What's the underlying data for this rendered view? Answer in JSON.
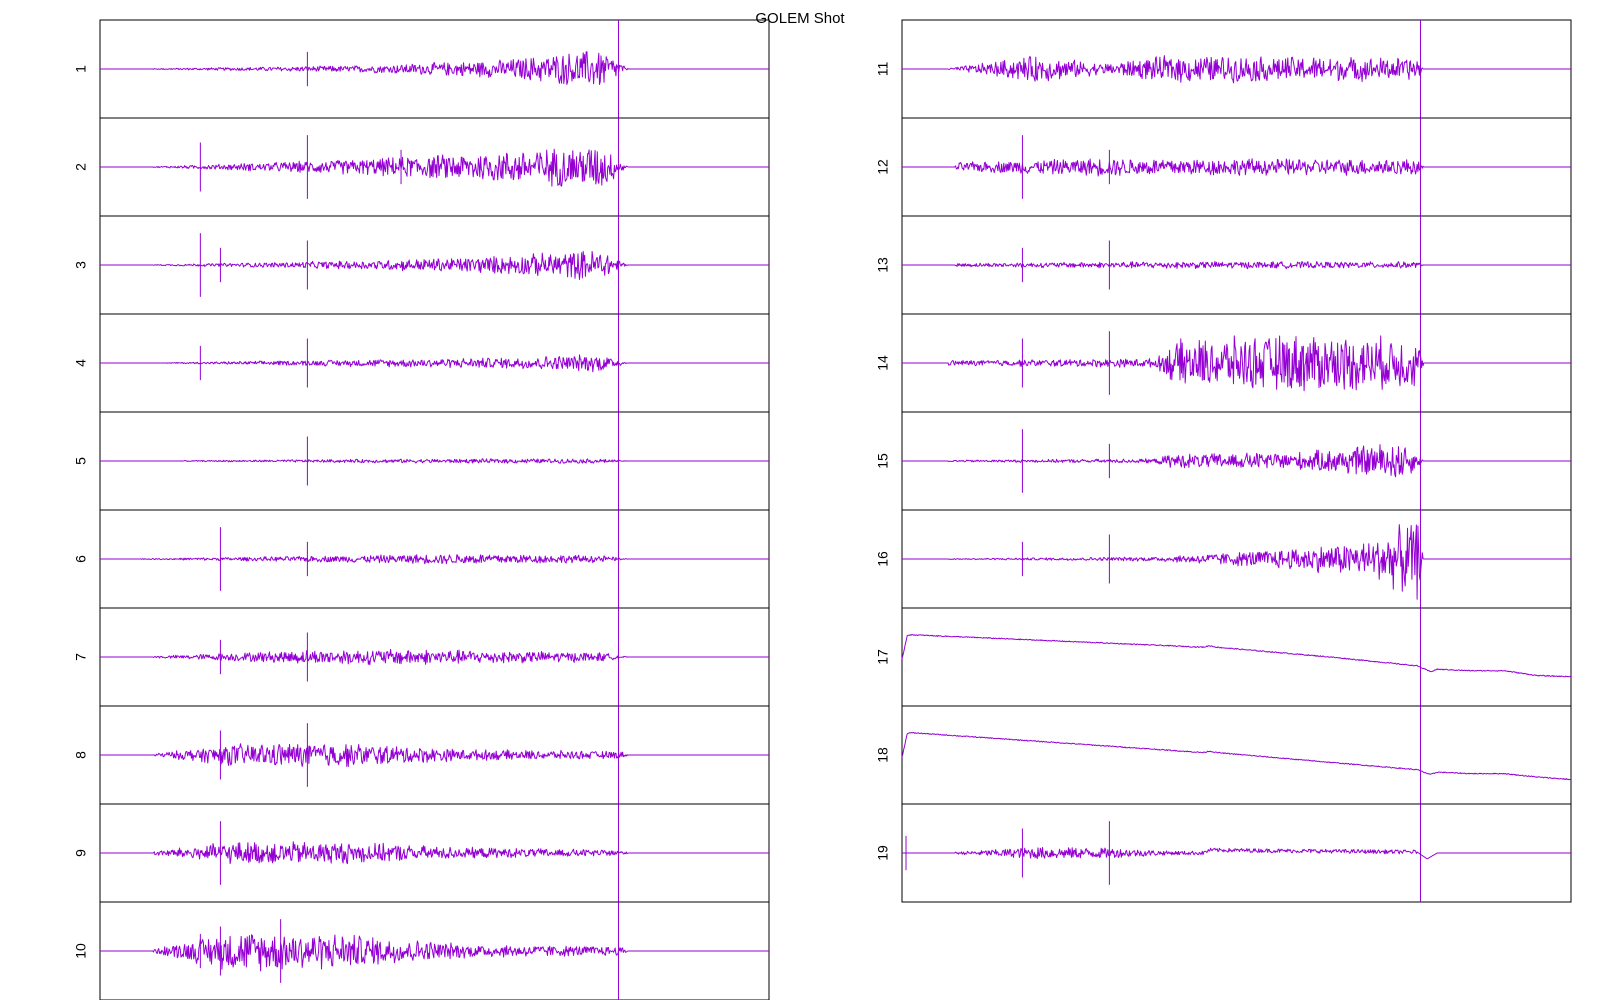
{
  "chart_data": {
    "type": "line",
    "title": "GOLEM Shot",
    "xlabel": "",
    "ylabel": "",
    "grid": false,
    "legend": "none",
    "trace_color": "#9400d3",
    "frame_color": "#000000",
    "columns": 2,
    "x_range": [
      0,
      1
    ],
    "marker_lines_x": [
      0.16,
      0.31,
      0.775
    ],
    "channels": [
      {
        "label": "1",
        "kind": "burst",
        "amplitude": 0.45,
        "envelope": [
          [
            0.08,
            0.01
          ],
          [
            0.4,
            0.08
          ],
          [
            0.6,
            0.2
          ],
          [
            0.75,
            0.45
          ],
          [
            0.79,
            0.0
          ]
        ],
        "spikes_x": [
          0.31,
          0.775
        ]
      },
      {
        "label": "2",
        "kind": "burst",
        "amplitude": 0.5,
        "envelope": [
          [
            0.08,
            0.01
          ],
          [
            0.4,
            0.18
          ],
          [
            0.6,
            0.35
          ],
          [
            0.75,
            0.5
          ],
          [
            0.79,
            0.0
          ]
        ],
        "spikes_x": [
          0.15,
          0.31,
          0.45,
          0.775
        ]
      },
      {
        "label": "3",
        "kind": "burst",
        "amplitude": 0.4,
        "envelope": [
          [
            0.08,
            0.01
          ],
          [
            0.4,
            0.1
          ],
          [
            0.6,
            0.2
          ],
          [
            0.75,
            0.35
          ],
          [
            0.79,
            0.0
          ]
        ],
        "spikes_x": [
          0.15,
          0.18,
          0.31,
          0.775
        ]
      },
      {
        "label": "4",
        "kind": "burst",
        "amplitude": 0.25,
        "envelope": [
          [
            0.1,
            0.01
          ],
          [
            0.4,
            0.08
          ],
          [
            0.6,
            0.12
          ],
          [
            0.75,
            0.2
          ],
          [
            0.79,
            0.0
          ]
        ],
        "spikes_x": [
          0.15,
          0.31,
          0.775
        ]
      },
      {
        "label": "5",
        "kind": "burst",
        "amplitude": 0.1,
        "envelope": [
          [
            0.12,
            0.01
          ],
          [
            0.4,
            0.04
          ],
          [
            0.6,
            0.05
          ],
          [
            0.75,
            0.05
          ],
          [
            0.79,
            0.0
          ]
        ],
        "spikes_x": [
          0.31,
          0.775
        ]
      },
      {
        "label": "6",
        "kind": "burst",
        "amplitude": 0.15,
        "envelope": [
          [
            0.06,
            0.01
          ],
          [
            0.3,
            0.06
          ],
          [
            0.55,
            0.12
          ],
          [
            0.75,
            0.08
          ],
          [
            0.79,
            0.0
          ]
        ],
        "spikes_x": [
          0.18,
          0.31,
          0.775
        ]
      },
      {
        "label": "7",
        "kind": "burst",
        "amplitude": 0.25,
        "envelope": [
          [
            0.08,
            0.02
          ],
          [
            0.3,
            0.15
          ],
          [
            0.45,
            0.18
          ],
          [
            0.75,
            0.1
          ],
          [
            0.79,
            0.0
          ]
        ],
        "spikes_x": [
          0.18,
          0.31,
          0.775
        ]
      },
      {
        "label": "8",
        "kind": "burst",
        "amplitude": 0.35,
        "envelope": [
          [
            0.08,
            0.03
          ],
          [
            0.2,
            0.25
          ],
          [
            0.35,
            0.28
          ],
          [
            0.55,
            0.12
          ],
          [
            0.78,
            0.08
          ],
          [
            0.79,
            0.0
          ]
        ],
        "spikes_x": [
          0.18,
          0.31,
          0.775
        ]
      },
      {
        "label": "9",
        "kind": "burst",
        "amplitude": 0.35,
        "envelope": [
          [
            0.08,
            0.05
          ],
          [
            0.2,
            0.25
          ],
          [
            0.35,
            0.25
          ],
          [
            0.55,
            0.12
          ],
          [
            0.78,
            0.07
          ],
          [
            0.79,
            0.0
          ]
        ],
        "spikes_x": [
          0.18,
          0.775
        ]
      },
      {
        "label": "10",
        "kind": "burst",
        "amplitude": 0.6,
        "envelope": [
          [
            0.08,
            0.05
          ],
          [
            0.2,
            0.45
          ],
          [
            0.35,
            0.4
          ],
          [
            0.55,
            0.15
          ],
          [
            0.78,
            0.1
          ],
          [
            0.79,
            0.0
          ]
        ],
        "spikes_x": [
          0.15,
          0.18,
          0.27,
          0.775
        ]
      },
      {
        "label": "11",
        "kind": "burst",
        "amplitude": 0.35,
        "envelope": [
          [
            0.07,
            0.02
          ],
          [
            0.2,
            0.3
          ],
          [
            0.3,
            0.12
          ],
          [
            0.4,
            0.3
          ],
          [
            0.77,
            0.25
          ],
          [
            0.78,
            0.0
          ]
        ],
        "spikes_x": [
          0.775
        ]
      },
      {
        "label": "12",
        "kind": "burst",
        "amplitude": 0.3,
        "envelope": [
          [
            0.08,
            0.1
          ],
          [
            0.3,
            0.2
          ],
          [
            0.6,
            0.18
          ],
          [
            0.77,
            0.18
          ],
          [
            0.78,
            0.0
          ]
        ],
        "spikes_x": [
          0.18,
          0.31,
          0.775
        ]
      },
      {
        "label": "13",
        "kind": "burst",
        "amplitude": 0.12,
        "envelope": [
          [
            0.08,
            0.04
          ],
          [
            0.4,
            0.08
          ],
          [
            0.77,
            0.07
          ],
          [
            0.78,
            0.0
          ]
        ],
        "spikes_x": [
          0.18,
          0.31,
          0.775
        ]
      },
      {
        "label": "14",
        "kind": "burst",
        "amplitude": 0.7,
        "envelope": [
          [
            0.07,
            0.06
          ],
          [
            0.38,
            0.1
          ],
          [
            0.41,
            0.5
          ],
          [
            0.6,
            0.65
          ],
          [
            0.77,
            0.55
          ],
          [
            0.78,
            0.0
          ]
        ],
        "spikes_x": [
          0.18,
          0.31,
          0.6,
          0.775
        ]
      },
      {
        "label": "15",
        "kind": "burst",
        "amplitude": 0.6,
        "envelope": [
          [
            0.07,
            0.02
          ],
          [
            0.38,
            0.05
          ],
          [
            0.4,
            0.15
          ],
          [
            0.6,
            0.2
          ],
          [
            0.75,
            0.45
          ],
          [
            0.78,
            0.0
          ]
        ],
        "spikes_x": [
          0.18,
          0.31,
          0.775
        ]
      },
      {
        "label": "16",
        "kind": "burst",
        "amplitude": 0.9,
        "envelope": [
          [
            0.07,
            0.01
          ],
          [
            0.38,
            0.05
          ],
          [
            0.55,
            0.2
          ],
          [
            0.7,
            0.4
          ],
          [
            0.77,
            0.9
          ],
          [
            0.78,
            0.0
          ]
        ],
        "spikes_x": [
          0.18,
          0.31,
          0.775
        ]
      },
      {
        "label": "17",
        "kind": "ramp",
        "points": [
          [
            0.0,
            -0.05
          ],
          [
            0.008,
            0.45
          ],
          [
            0.02,
            0.45
          ],
          [
            0.45,
            0.2
          ],
          [
            0.46,
            0.23
          ],
          [
            0.47,
            0.2
          ],
          [
            0.64,
            0.0
          ],
          [
            0.77,
            -0.18
          ],
          [
            0.79,
            -0.3
          ],
          [
            0.8,
            -0.25
          ],
          [
            0.85,
            -0.28
          ],
          [
            0.9,
            -0.28
          ],
          [
            0.95,
            -0.38
          ],
          [
            1.0,
            -0.4
          ]
        ],
        "spikes_x": [
          0.775
        ]
      },
      {
        "label": "18",
        "kind": "ramp",
        "points": [
          [
            0.0,
            -0.05
          ],
          [
            0.008,
            0.45
          ],
          [
            0.02,
            0.45
          ],
          [
            0.45,
            0.05
          ],
          [
            0.46,
            0.08
          ],
          [
            0.47,
            0.05
          ],
          [
            0.64,
            -0.15
          ],
          [
            0.77,
            -0.3
          ],
          [
            0.79,
            -0.4
          ],
          [
            0.8,
            -0.35
          ],
          [
            0.85,
            -0.38
          ],
          [
            0.9,
            -0.38
          ],
          [
            0.95,
            -0.45
          ],
          [
            1.0,
            -0.5
          ]
        ],
        "spikes_x": [
          0.775
        ]
      },
      {
        "label": "19",
        "kind": "baseline",
        "points": [
          [
            0.0,
            0.0
          ],
          [
            0.45,
            0.0
          ],
          [
            0.46,
            0.06
          ],
          [
            0.77,
            0.02
          ],
          [
            0.785,
            -0.12
          ],
          [
            0.8,
            0.0
          ],
          [
            1.0,
            0.0
          ]
        ],
        "noise": [
          [
            0.08,
            0.02
          ],
          [
            0.2,
            0.12
          ],
          [
            0.31,
            0.1
          ],
          [
            0.4,
            0.04
          ],
          [
            0.77,
            0.04
          ]
        ],
        "spikes_x": [
          0.006,
          0.18,
          0.31,
          0.775
        ]
      }
    ]
  }
}
